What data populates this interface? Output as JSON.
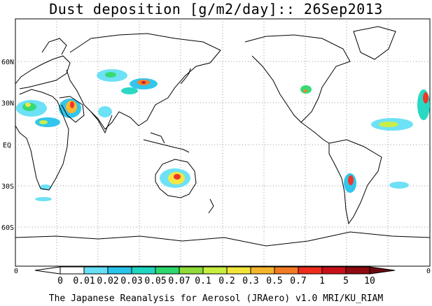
{
  "title": "Dust deposition [g/m2/day]:: 26Sep2013",
  "footer": "The Japanese Reanalysis for Aerosol (JRAero) v1.0 MRI/KU_RIAM",
  "lat_labels": [
    "60N",
    "30N",
    "EQ",
    "30S",
    "60S"
  ],
  "colorbar": {
    "edge_left": "0",
    "edge_right": "0",
    "labels": [
      "0",
      "0.01",
      "0.02",
      "0.03",
      "0.05",
      "0.07",
      "0.1",
      "0.2",
      "0.3",
      "0.5",
      "0.7",
      "1",
      "5",
      "10"
    ],
    "colors": [
      "#ffffff",
      "#66e0f5",
      "#29c4ec",
      "#1fd6c0",
      "#2dd96f",
      "#8fdc3a",
      "#c8ee40",
      "#f2e63a",
      "#f5b52a",
      "#f27a22",
      "#ef2c1c",
      "#c8101a",
      "#8e0a12",
      "#6a0a10"
    ]
  }
}
